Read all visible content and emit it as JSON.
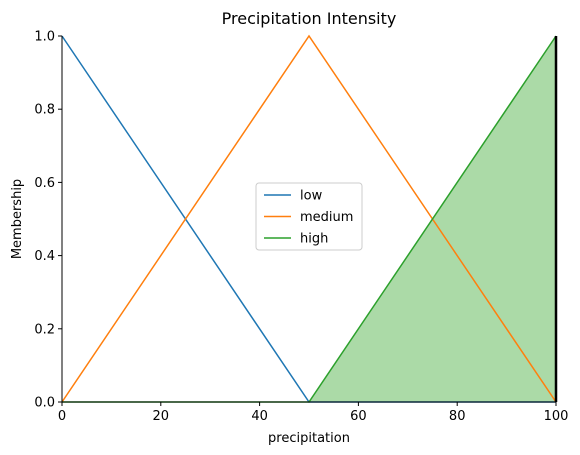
{
  "chart_data": {
    "type": "line",
    "title": "Precipitation Intensity",
    "xlabel": "precipitation",
    "ylabel": "Membership",
    "xlim": [
      0,
      100
    ],
    "ylim": [
      0,
      1.0
    ],
    "x_ticks": [
      0,
      20,
      40,
      60,
      80,
      100
    ],
    "y_ticks": [
      0.0,
      0.2,
      0.4,
      0.6,
      0.8,
      1.0
    ],
    "x_tick_labels": [
      "0",
      "20",
      "40",
      "60",
      "80",
      "100"
    ],
    "y_tick_labels": [
      "0.0",
      "0.2",
      "0.4",
      "0.6",
      "0.8",
      "1.0"
    ],
    "grid": false,
    "legend_position": "center",
    "series": [
      {
        "name": "low",
        "color": "#1f77b4",
        "x": [
          0,
          50,
          100
        ],
        "y": [
          1.0,
          0.0,
          0.0
        ]
      },
      {
        "name": "medium",
        "color": "#ff7f0e",
        "x": [
          0,
          50,
          100
        ],
        "y": [
          0.0,
          1.0,
          0.0
        ]
      },
      {
        "name": "high",
        "color": "#2ca02c",
        "x": [
          0,
          50,
          100
        ],
        "y": [
          0.0,
          0.0,
          1.0
        ]
      }
    ],
    "filled_region": {
      "series": "high",
      "x": [
        50,
        100
      ],
      "y": [
        0.0,
        1.0
      ],
      "fill_color": "#abdaa7"
    },
    "vertical_marker": {
      "x": 100,
      "color": "#000000"
    }
  }
}
